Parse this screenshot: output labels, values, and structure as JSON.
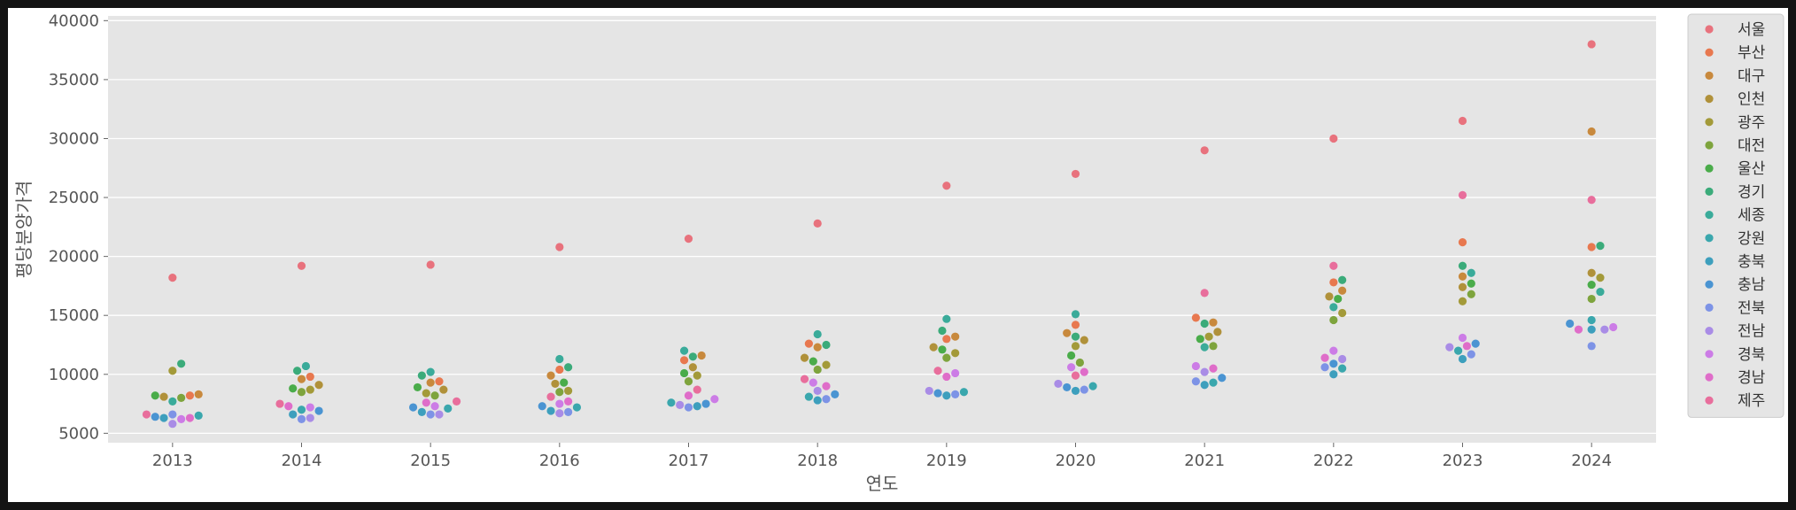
{
  "chart_data": {
    "type": "scatter",
    "subtype": "swarm",
    "title": "",
    "xlabel": "연도",
    "ylabel": "평당분양가격",
    "categories": [
      "2013",
      "2014",
      "2015",
      "2016",
      "2017",
      "2018",
      "2019",
      "2020",
      "2021",
      "2022",
      "2023",
      "2024"
    ],
    "yticks": [
      5000,
      10000,
      15000,
      20000,
      25000,
      30000,
      35000,
      40000
    ],
    "ylim": [
      4200,
      40400
    ],
    "grid": true,
    "legend_position": "right-outside",
    "series": [
      {
        "name": "서울",
        "color": "#e8727d",
        "values": [
          18200,
          19200,
          19300,
          20800,
          21500,
          22800,
          26000,
          27000,
          29000,
          30000,
          31500,
          38000
        ]
      },
      {
        "name": "부산",
        "color": "#e8784f",
        "values": [
          8200,
          9800,
          9400,
          10400,
          11200,
          12600,
          13000,
          14200,
          14800,
          17800,
          21200,
          20800
        ]
      },
      {
        "name": "대구",
        "color": "#c8893d",
        "values": [
          8300,
          9600,
          9300,
          9900,
          11600,
          12300,
          13200,
          13500,
          14400,
          17100,
          18300,
          30600
        ]
      },
      {
        "name": "인천",
        "color": "#b0913a",
        "values": [
          8100,
          9100,
          8700,
          9200,
          10600,
          11400,
          12300,
          12900,
          13600,
          16600,
          17400,
          18600
        ]
      },
      {
        "name": "광주",
        "color": "#a39a39",
        "values": [
          10300,
          8700,
          8400,
          8600,
          9900,
          10800,
          11800,
          12400,
          13200,
          15200,
          16200,
          18200
        ]
      },
      {
        "name": "대전",
        "color": "#7ea43d",
        "values": [
          8000,
          8500,
          8200,
          8500,
          9400,
          10400,
          11400,
          11000,
          12400,
          14600,
          16800,
          16400
        ]
      },
      {
        "name": "울산",
        "color": "#4aac4a",
        "values": [
          8200,
          8800,
          8900,
          9300,
          10100,
          11100,
          12100,
          11600,
          13000,
          16400,
          17700,
          17600
        ]
      },
      {
        "name": "경기",
        "color": "#3bab7a",
        "values": [
          10900,
          10300,
          9900,
          10600,
          11500,
          12500,
          13700,
          13200,
          14300,
          18000,
          19200,
          20900
        ]
      },
      {
        "name": "세종",
        "color": "#3aab9a",
        "values": [
          7700,
          10700,
          10200,
          11300,
          12000,
          13400,
          14700,
          15100,
          12300,
          15700,
          18600,
          17000
        ]
      },
      {
        "name": "강원",
        "color": "#3aa7ad",
        "values": [
          6500,
          7000,
          7100,
          7200,
          7600,
          8100,
          8500,
          9000,
          9300,
          10500,
          12000,
          14600
        ]
      },
      {
        "name": "충북",
        "color": "#3d9fbd",
        "values": [
          6300,
          6600,
          6800,
          6900,
          7300,
          7800,
          8200,
          8600,
          9100,
          10000,
          11300,
          13800
        ]
      },
      {
        "name": "충남",
        "color": "#4a94d2",
        "values": [
          6400,
          6900,
          7200,
          7300,
          7500,
          8300,
          8400,
          8900,
          9700,
          10900,
          12600,
          14300
        ]
      },
      {
        "name": "전북",
        "color": "#7d93e6",
        "values": [
          6600,
          6200,
          6600,
          6800,
          7200,
          7900,
          8300,
          8700,
          9400,
          10600,
          11700,
          12400
        ]
      },
      {
        "name": "전남",
        "color": "#a98ce6",
        "values": [
          5800,
          6300,
          6600,
          6700,
          7400,
          8600,
          8600,
          9200,
          10200,
          11300,
          12300,
          13800
        ]
      },
      {
        "name": "경북",
        "color": "#cc7ce6",
        "values": [
          6200,
          7200,
          7300,
          7500,
          7900,
          9300,
          10100,
          10600,
          10700,
          12000,
          13100,
          14000
        ]
      },
      {
        "name": "경남",
        "color": "#df6dc9",
        "values": [
          6300,
          7300,
          7600,
          7700,
          8200,
          9000,
          9800,
          10200,
          10500,
          11400,
          12400,
          13800
        ]
      },
      {
        "name": "제주",
        "color": "#e86e9c",
        "values": [
          6600,
          7500,
          7700,
          8100,
          8700,
          9600,
          10300,
          9900,
          16900,
          19200,
          25200,
          24800
        ]
      }
    ]
  }
}
